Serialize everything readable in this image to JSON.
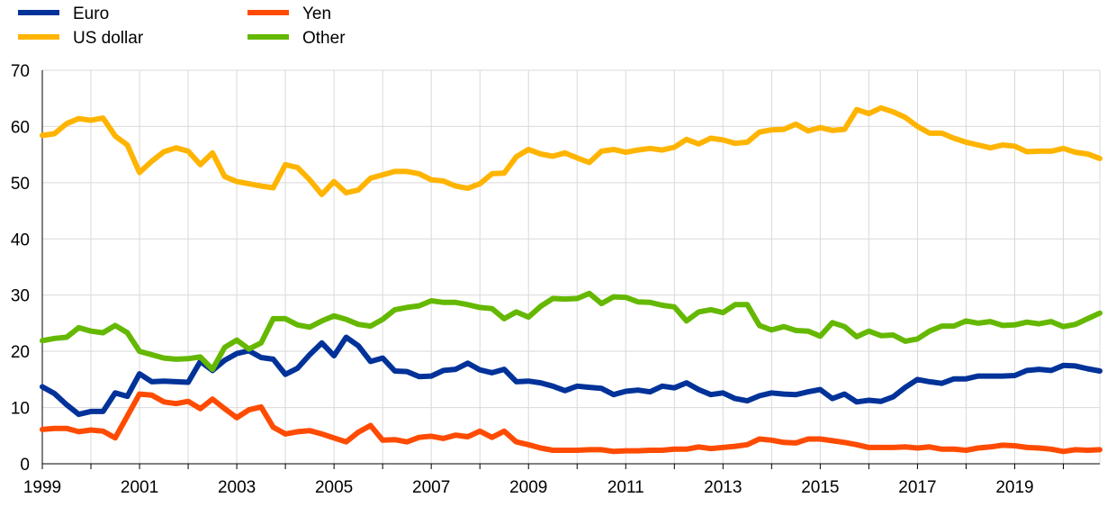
{
  "chart_data": {
    "type": "line",
    "title": "",
    "xlabel": "",
    "ylabel": "",
    "xlim": [
      1999.0,
      2020.75
    ],
    "ylim": [
      0,
      70
    ],
    "yticks": [
      0,
      10,
      20,
      30,
      40,
      50,
      60,
      70
    ],
    "xticks": [
      1999,
      2001,
      2003,
      2005,
      2007,
      2009,
      2011,
      2013,
      2015,
      2017,
      2019
    ],
    "grid": "vertical and horizontal",
    "legend_position": "top-left",
    "x": [
      1999.0,
      1999.25,
      1999.5,
      1999.75,
      2000.0,
      2000.25,
      2000.5,
      2000.75,
      2001.0,
      2001.25,
      2001.5,
      2001.75,
      2002.0,
      2002.25,
      2002.5,
      2002.75,
      2003.0,
      2003.25,
      2003.5,
      2003.75,
      2004.0,
      2004.25,
      2004.5,
      2004.75,
      2005.0,
      2005.25,
      2005.5,
      2005.75,
      2006.0,
      2006.25,
      2006.5,
      2006.75,
      2007.0,
      2007.25,
      2007.5,
      2007.75,
      2008.0,
      2008.25,
      2008.5,
      2008.75,
      2009.0,
      2009.25,
      2009.5,
      2009.75,
      2010.0,
      2010.25,
      2010.5,
      2010.75,
      2011.0,
      2011.25,
      2011.5,
      2011.75,
      2012.0,
      2012.25,
      2012.5,
      2012.75,
      2013.0,
      2013.25,
      2013.5,
      2013.75,
      2014.0,
      2014.25,
      2014.5,
      2014.75,
      2015.0,
      2015.25,
      2015.5,
      2015.75,
      2016.0,
      2016.25,
      2016.5,
      2016.75,
      2017.0,
      2017.25,
      2017.5,
      2017.75,
      2018.0,
      2018.25,
      2018.5,
      2018.75,
      2019.0,
      2019.25,
      2019.5,
      2019.75,
      2020.0,
      2020.25,
      2020.5,
      2020.75
    ],
    "series": [
      {
        "name": "Euro",
        "color": "#003299",
        "values": [
          13.7,
          12.5,
          10.5,
          8.8,
          9.3,
          9.3,
          12.6,
          12.0,
          16.0,
          14.6,
          14.7,
          14.6,
          14.5,
          18.2,
          16.6,
          18.4,
          19.6,
          20.1,
          18.9,
          18.6,
          15.9,
          17.0,
          19.4,
          21.5,
          19.2,
          22.5,
          21.0,
          18.2,
          18.8,
          16.5,
          16.4,
          15.5,
          15.6,
          16.6,
          16.8,
          17.9,
          16.7,
          16.2,
          16.8,
          14.6,
          14.7,
          14.4,
          13.8,
          13.0,
          13.8,
          13.6,
          13.4,
          12.3,
          12.9,
          13.1,
          12.8,
          13.8,
          13.5,
          14.4,
          13.2,
          12.3,
          12.6,
          11.6,
          11.2,
          12.1,
          12.6,
          12.4,
          12.3,
          12.8,
          13.2,
          11.6,
          12.4,
          11.0,
          11.3,
          11.1,
          11.9,
          13.6,
          15.0,
          14.6,
          14.3,
          15.1,
          15.1,
          15.6,
          15.6,
          15.6,
          15.7,
          16.6,
          16.8,
          16.6,
          17.5,
          17.4,
          16.9,
          16.5
        ]
      },
      {
        "name": "US dollar",
        "color": "#FFB400",
        "values": [
          58.4,
          58.7,
          60.5,
          61.4,
          61.1,
          61.5,
          58.3,
          56.7,
          51.8,
          53.8,
          55.5,
          56.2,
          55.6,
          53.2,
          55.3,
          51.1,
          50.2,
          49.8,
          49.4,
          49.1,
          53.2,
          52.7,
          50.5,
          47.9,
          50.2,
          48.2,
          48.7,
          50.8,
          51.4,
          52.0,
          52.0,
          51.6,
          50.5,
          50.3,
          49.4,
          49.0,
          49.8,
          51.6,
          51.7,
          54.6,
          55.9,
          55.1,
          54.7,
          55.3,
          54.4,
          53.6,
          55.6,
          55.9,
          55.4,
          55.8,
          56.1,
          55.8,
          56.3,
          57.7,
          56.9,
          57.9,
          57.6,
          57.0,
          57.2,
          59.0,
          59.4,
          59.5,
          60.4,
          59.2,
          59.8,
          59.3,
          59.5,
          63.0,
          62.3,
          63.3,
          62.6,
          61.6,
          60.0,
          58.8,
          58.8,
          57.9,
          57.2,
          56.7,
          56.2,
          56.7,
          56.5,
          55.5,
          55.6,
          55.6,
          56.1,
          55.4,
          55.1,
          54.3
        ]
      },
      {
        "name": "Yen",
        "color": "#FF4B00",
        "values": [
          6.1,
          6.3,
          6.3,
          5.7,
          6.0,
          5.8,
          4.6,
          8.5,
          12.4,
          12.2,
          11.0,
          10.7,
          11.1,
          9.8,
          11.5,
          9.8,
          8.2,
          9.6,
          10.1,
          6.5,
          5.3,
          5.7,
          5.9,
          5.3,
          4.6,
          3.9,
          5.6,
          6.8,
          4.2,
          4.3,
          3.9,
          4.7,
          4.9,
          4.5,
          5.1,
          4.8,
          5.8,
          4.7,
          5.8,
          3.9,
          3.4,
          2.8,
          2.4,
          2.4,
          2.4,
          2.5,
          2.5,
          2.2,
          2.3,
          2.3,
          2.4,
          2.4,
          2.6,
          2.6,
          3.0,
          2.7,
          2.9,
          3.1,
          3.4,
          4.4,
          4.2,
          3.8,
          3.7,
          4.4,
          4.4,
          4.1,
          3.8,
          3.4,
          2.9,
          2.9,
          2.9,
          3.0,
          2.8,
          3.0,
          2.6,
          2.6,
          2.4,
          2.8,
          3.0,
          3.3,
          3.2,
          2.9,
          2.8,
          2.6,
          2.2,
          2.5,
          2.4,
          2.5
        ]
      },
      {
        "name": "Other",
        "color": "#65B800",
        "values": [
          21.9,
          22.3,
          22.5,
          24.2,
          23.6,
          23.3,
          24.6,
          23.3,
          20.0,
          19.4,
          18.8,
          18.6,
          18.7,
          19.0,
          16.8,
          20.7,
          22.0,
          20.4,
          21.5,
          25.8,
          25.8,
          24.7,
          24.3,
          25.4,
          26.3,
          25.7,
          24.8,
          24.5,
          25.7,
          27.4,
          27.8,
          28.1,
          29.0,
          28.7,
          28.7,
          28.3,
          27.8,
          27.6,
          25.8,
          27.0,
          26.1,
          28.0,
          29.4,
          29.3,
          29.4,
          30.3,
          28.5,
          29.7,
          29.6,
          28.8,
          28.7,
          28.2,
          27.9,
          25.4,
          27.0,
          27.4,
          26.9,
          28.3,
          28.3,
          24.6,
          23.8,
          24.4,
          23.7,
          23.6,
          22.7,
          25.1,
          24.4,
          22.6,
          23.6,
          22.8,
          22.9,
          21.8,
          22.2,
          23.6,
          24.5,
          24.5,
          25.4,
          25.0,
          25.3,
          24.6,
          24.7,
          25.2,
          24.9,
          25.3,
          24.4,
          24.8,
          25.8,
          26.8
        ]
      }
    ]
  }
}
